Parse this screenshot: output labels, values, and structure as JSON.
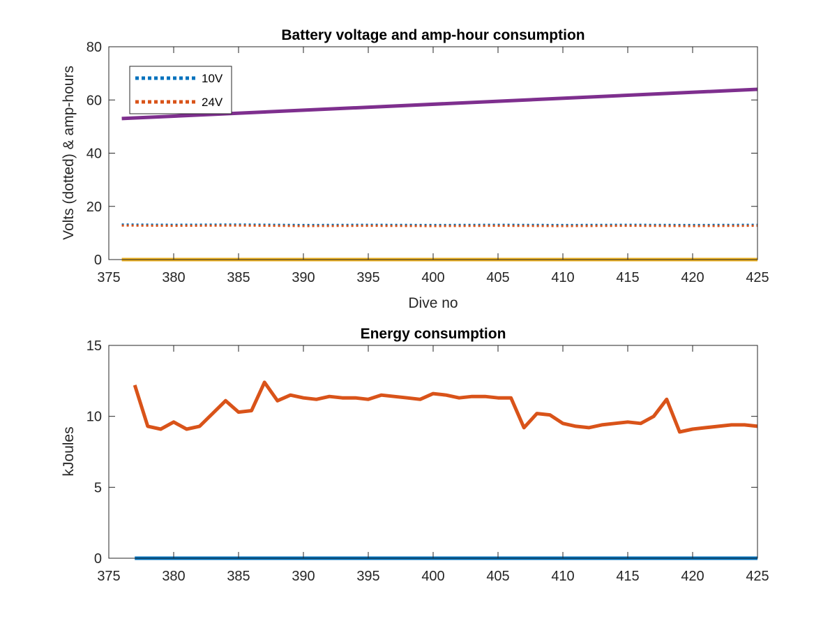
{
  "chart_data": [
    {
      "type": "line",
      "title": "Battery voltage and amp-hour consumption",
      "xlabel": "Dive no",
      "ylabel": "Volts (dotted) & amp-hours",
      "xlim": [
        375,
        425
      ],
      "ylim": [
        0,
        80
      ],
      "xticks": [
        375,
        380,
        385,
        390,
        395,
        400,
        405,
        410,
        415,
        420,
        425
      ],
      "yticks": [
        0,
        20,
        40,
        60,
        80
      ],
      "grid": false,
      "legend": {
        "placement": "top-left",
        "entries": [
          "10V",
          "24V"
        ]
      },
      "series": [
        {
          "name": "10V",
          "style": "dotted",
          "color": "#0072BD",
          "x": [
            376,
            380,
            385,
            390,
            395,
            400,
            405,
            410,
            415,
            420,
            425
          ],
          "values": [
            13.2,
            13.1,
            13.2,
            13.0,
            13.1,
            13.0,
            13.1,
            13.0,
            13.1,
            13.0,
            13.1
          ]
        },
        {
          "style": "dotted",
          "color": "#D95319",
          "x": [
            376,
            380,
            385,
            390,
            395,
            400,
            405,
            410,
            415,
            420,
            425
          ],
          "values": [
            12.8,
            12.7,
            12.8,
            12.6,
            12.7,
            12.6,
            12.7,
            12.6,
            12.7,
            12.6,
            12.7
          ]
        },
        {
          "style": "solid",
          "color": "#7E2F8E",
          "x": [
            376,
            425
          ],
          "values": [
            53,
            64
          ]
        },
        {
          "style": "solid",
          "color": "#EDB120",
          "x": [
            376,
            425
          ],
          "values": [
            0,
            0
          ]
        }
      ]
    },
    {
      "type": "line",
      "title": "Energy consumption",
      "xlabel": "",
      "ylabel": "kJoules",
      "xlim": [
        375,
        425
      ],
      "ylim": [
        0,
        15
      ],
      "xticks": [
        375,
        380,
        385,
        390,
        395,
        400,
        405,
        410,
        415,
        420,
        425
      ],
      "yticks": [
        0,
        5,
        10,
        15
      ],
      "grid": false,
      "series": [
        {
          "style": "solid",
          "color": "#0072BD",
          "x": [
            377,
            425
          ],
          "values": [
            0,
            0
          ]
        },
        {
          "style": "solid",
          "color": "#D95319",
          "x": [
            377,
            378,
            379,
            380,
            381,
            382,
            383,
            384,
            385,
            386,
            387,
            388,
            389,
            390,
            391,
            392,
            393,
            394,
            395,
            396,
            397,
            398,
            399,
            400,
            401,
            402,
            403,
            404,
            405,
            406,
            407,
            408,
            409,
            410,
            411,
            412,
            413,
            414,
            415,
            416,
            417,
            418,
            419,
            420,
            421,
            422,
            423,
            424,
            425
          ],
          "values": [
            12.2,
            9.3,
            9.1,
            9.6,
            9.1,
            9.3,
            10.2,
            11.1,
            10.3,
            10.4,
            12.4,
            11.1,
            11.5,
            11.3,
            11.2,
            11.4,
            11.3,
            11.3,
            11.2,
            11.5,
            11.4,
            11.3,
            11.2,
            11.6,
            11.5,
            11.3,
            11.4,
            11.4,
            11.3,
            11.3,
            9.2,
            10.2,
            10.1,
            9.5,
            9.3,
            9.2,
            9.4,
            9.5,
            9.6,
            9.5,
            10.0,
            11.2,
            8.9,
            9.1,
            9.2,
            9.3,
            9.4,
            9.4,
            9.3
          ]
        }
      ]
    }
  ]
}
